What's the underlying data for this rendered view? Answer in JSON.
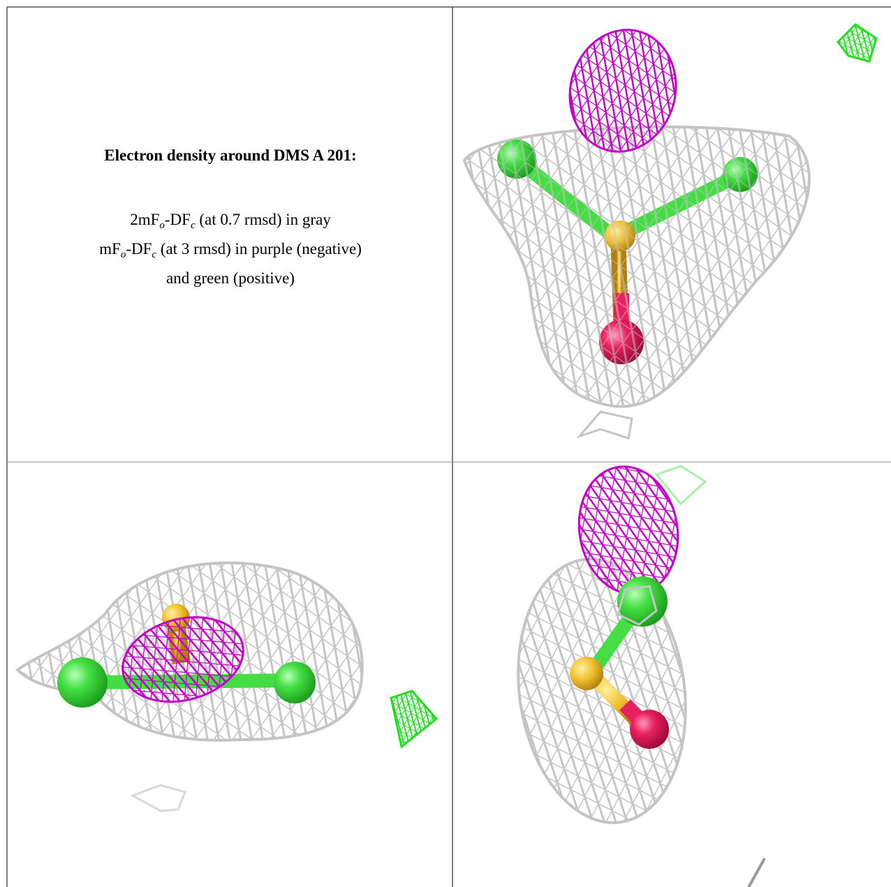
{
  "caption": {
    "title": "Electron density around DMS A 201:",
    "lines": [
      [
        "2mF",
        "o",
        "-DF",
        "c",
        " (at 0.7 rmsd) in gray"
      ],
      [
        "mF",
        "o",
        "-DF",
        "c",
        " (at 3 rmsd) in purple (negative)"
      ],
      [
        "and green (positive)"
      ]
    ]
  }
}
